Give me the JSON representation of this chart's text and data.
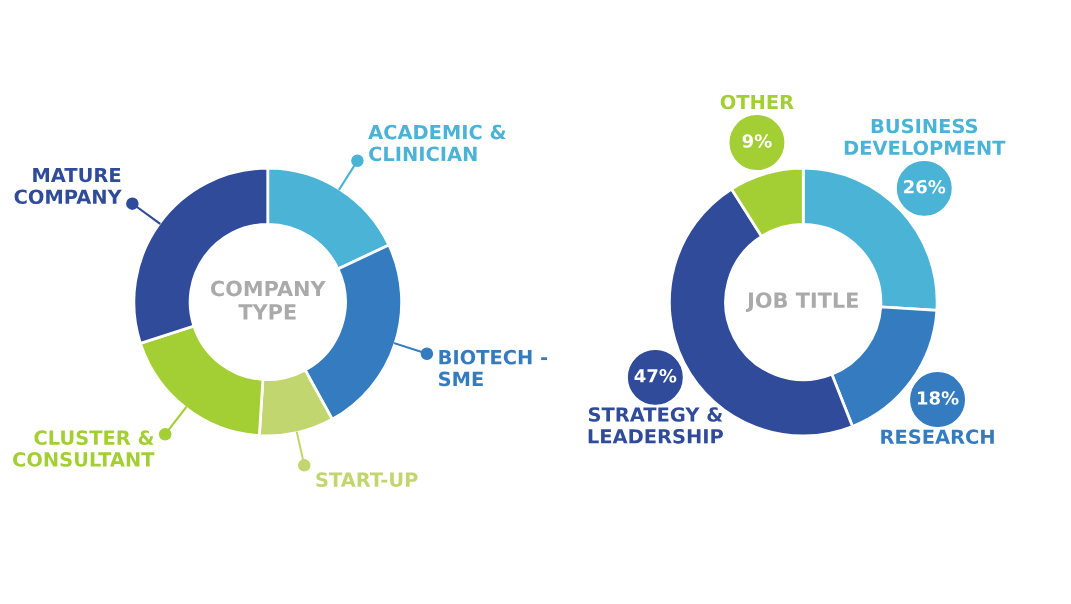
{
  "chart_data": [
    {
      "type": "donut",
      "title": "COMPANY\nTYPE",
      "categories": [
        "ACADEMIC &\nCLINICIAN",
        "BIOTECH -\nSME",
        "START-UP",
        "CLUSTER &\nCONSULTANT",
        "MATURE\nCOMPANY"
      ],
      "values": [
        18,
        24,
        9,
        19,
        30
      ],
      "colors": [
        "#4ab3d6",
        "#347bbf",
        "#c2d66f",
        "#a3cf35",
        "#2f4b9a"
      ]
    },
    {
      "type": "donut",
      "title": "JOB TITLE",
      "categories": [
        "BUSINESS\nDEVELOPMENT",
        "RESEARCH",
        "STRATEGY &\nLEADERSHIP",
        "OTHER"
      ],
      "values": [
        26,
        18,
        47,
        9
      ],
      "value_labels": [
        "26%",
        "18%",
        "47%",
        "9%"
      ],
      "colors": [
        "#4ab3d6",
        "#347bbf",
        "#2f4b9a",
        "#a3cf35"
      ]
    }
  ]
}
